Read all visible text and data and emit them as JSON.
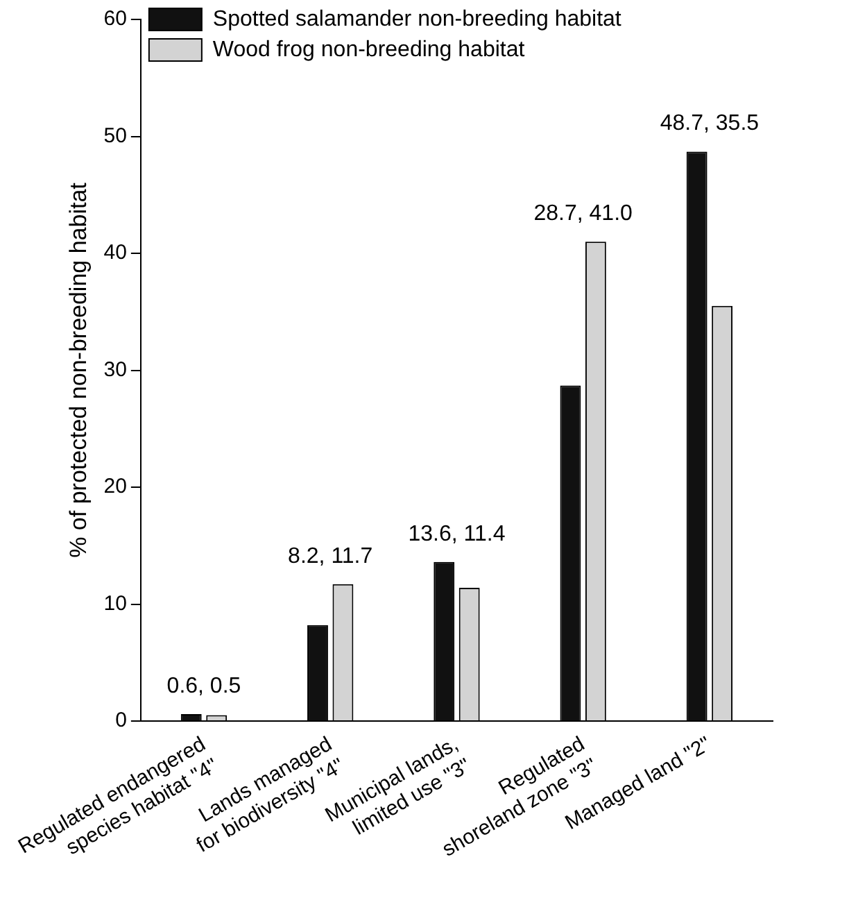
{
  "chart_data": {
    "type": "bar",
    "ylabel": "% of protected non-breeding habitat",
    "categories": [
      "Regulated endangered\nspecies habitat \"4\"",
      "Lands managed\nfor biodiversity \"4\"",
      "Municipal lands,\nlimited use \"3\"",
      "Regulated\nshoreland zone \"3\"",
      "Managed land \"2\""
    ],
    "series": [
      {
        "name": "Spotted salamander non-breeding habitat",
        "color": "#111111",
        "values": [
          0.6,
          8.2,
          13.6,
          28.7,
          48.7
        ]
      },
      {
        "name": "Wood frog non-breeding habitat",
        "color": "#d3d3d3",
        "values": [
          0.5,
          11.7,
          11.4,
          41.0,
          35.5
        ]
      }
    ],
    "annotations": [
      "0.6, 0.5",
      "8.2, 11.7",
      "13.6, 11.4",
      "28.7, 41.0",
      "48.7, 35.5"
    ],
    "ylim": [
      0,
      60
    ],
    "yticks": [
      0,
      10,
      20,
      30,
      40,
      50,
      60
    ],
    "grid": false,
    "legend": "top left"
  }
}
